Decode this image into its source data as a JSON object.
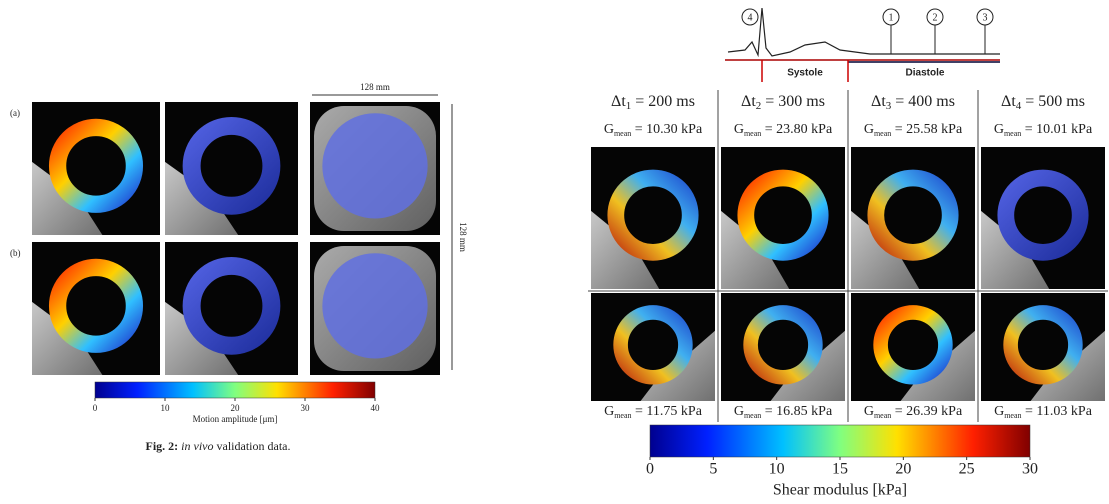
{
  "left_figure": {
    "row_labels": [
      "(a)",
      "(b)"
    ],
    "width_label": "128 mm",
    "height_label": "128 mm",
    "colorbar": {
      "ticks": [
        0,
        10,
        20,
        30,
        40
      ],
      "label": "Motion amplitude [μm]"
    },
    "caption": {
      "number": "Fig. 2:",
      "italic": "in vivo",
      "text": " validation data."
    }
  },
  "right_figure": {
    "ecg_markers": [
      "4",
      "1",
      "2",
      "3"
    ],
    "phases": [
      "Systole",
      "Diastole"
    ],
    "columns": [
      {
        "delta": "Δt",
        "delta_sub": "1",
        "delta_value": " = 200 ms",
        "g": "G",
        "g_sub": "mean",
        "top_value": " = 10.30 kPa",
        "bottom_value": " = 11.75 kPa"
      },
      {
        "delta": "Δt",
        "delta_sub": "2",
        "delta_value": " = 300 ms",
        "g": "G",
        "g_sub": "mean",
        "top_value": " = 23.80 kPa",
        "bottom_value": " = 16.85 kPa"
      },
      {
        "delta": "Δt",
        "delta_sub": "3",
        "delta_value": " = 400 ms",
        "g": "G",
        "g_sub": "mean",
        "top_value": " = 25.58 kPa",
        "bottom_value": " = 26.39 kPa"
      },
      {
        "delta": "Δt",
        "delta_sub": "4",
        "delta_value": " = 500 ms",
        "g": "G",
        "g_sub": "mean",
        "top_value": " = 10.01 kPa",
        "bottom_value": " = 11.03 kPa"
      }
    ],
    "colorbar": {
      "ticks": [
        0,
        5,
        10,
        15,
        20,
        25,
        30
      ],
      "label": "Shear modulus [kPa]"
    }
  }
}
